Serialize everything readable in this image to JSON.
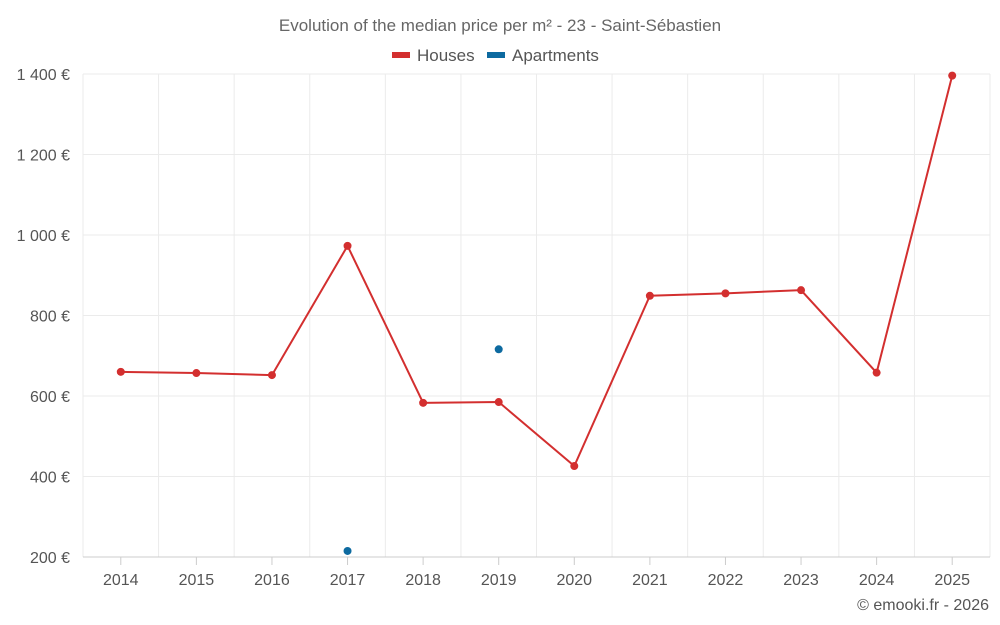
{
  "chart_data": {
    "type": "line",
    "title": "Evolution of the median price per m² - 23 - Saint-Sébastien",
    "categories": [
      "2014",
      "2015",
      "2016",
      "2017",
      "2018",
      "2019",
      "2020",
      "2021",
      "2022",
      "2023",
      "2024",
      "2025"
    ],
    "series": [
      {
        "name": "Houses",
        "color": "#d32f2f",
        "values": [
          660,
          657,
          652,
          973,
          583,
          585,
          426,
          849,
          855,
          863,
          658,
          1396
        ]
      },
      {
        "name": "Apartments",
        "color": "#0d6aa0",
        "values": [
          null,
          null,
          null,
          215,
          null,
          716,
          null,
          null,
          null,
          null,
          null,
          null
        ]
      }
    ],
    "ylim": [
      200,
      1400
    ],
    "yticks": [
      200,
      400,
      600,
      800,
      1000,
      1200,
      1400
    ],
    "ytick_labels": [
      "200 €",
      "400 €",
      "600 €",
      "800 €",
      "1 000 €",
      "1 200 €",
      "1 400 €"
    ],
    "xlabel": "",
    "ylabel": "",
    "grid": true,
    "legend_position": "top-center"
  },
  "credit": "© emooki.fr - 2026"
}
